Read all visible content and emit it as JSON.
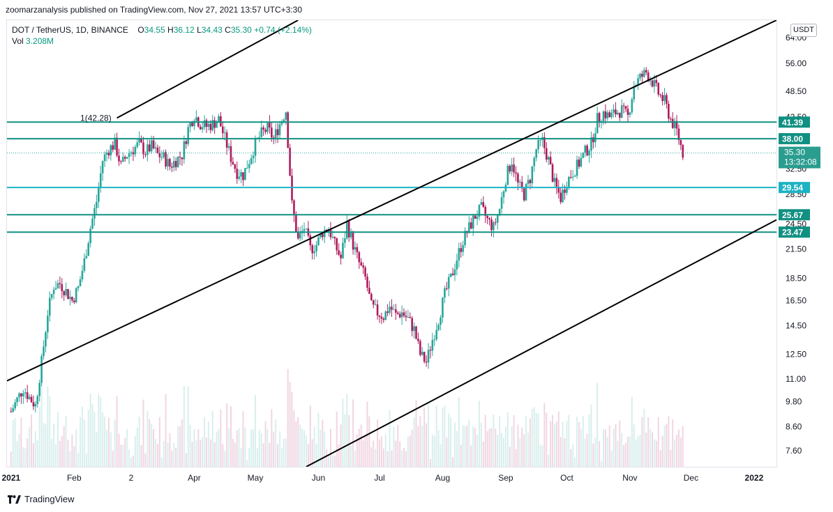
{
  "header": {
    "publisher_line": "zoomarzanalysis published on TradingView.com, Nov 27, 2021 13:57 UTC+3:30"
  },
  "legend": {
    "symbol": "DOT / TetherUS, 1D, BINANCE",
    "open_label": "O",
    "open": "34.55",
    "high_label": "H",
    "high": "36.12",
    "low_label": "L",
    "low": "34.43",
    "close_label": "C",
    "close": "35.30",
    "change": "+0.74 (+2.14%)",
    "vol_label": "Vol",
    "vol": "3.208M"
  },
  "currency_button": "USDT",
  "footer": {
    "brand": "TradingView",
    "logo_icon": "tradingview-logo-icon"
  },
  "annotation_label": "1(42.28)",
  "colors": {
    "up": "#26a69a",
    "down": "#b0195c",
    "level_line": "#119082",
    "level_line_cyan": "#1cb3c4",
    "trend_line": "#000000",
    "price_tag": "#2a9d8f"
  },
  "chart_data": {
    "type": "candlestick",
    "title": "DOT / TetherUS, 1D, BINANCE",
    "y_scale": "log",
    "y_ticks": [
      "7.60",
      "8.60",
      "9.80",
      "11.00",
      "12.50",
      "14.50",
      "16.50",
      "18.50",
      "21.50",
      "24.50",
      "28.50",
      "32.50",
      "42.50",
      "48.50",
      "56.00",
      "64.00"
    ],
    "x_ticks": [
      "2021",
      "Feb",
      "2",
      "Apr",
      "May",
      "Jun",
      "Jul",
      "Aug",
      "Sep",
      "Oct",
      "Nov",
      "Dec",
      "2022"
    ],
    "x_tick_dates": [
      "2021-01-01",
      "2021-02-01",
      "2021-03-01",
      "2021-04-01",
      "2021-05-01",
      "2021-06-01",
      "2021-07-01",
      "2021-08-01",
      "2021-09-01",
      "2021-10-01",
      "2021-11-01",
      "2021-12-01",
      "2022-01-01"
    ],
    "ylim": [
      7.0,
      70.0
    ],
    "xlim": [
      "2020-12-30",
      "2022-01-12"
    ],
    "date_start": "2021-01-01",
    "price_close_series": [
      [
        "2021-01-01",
        9.3
      ],
      [
        "2021-01-04",
        9.9
      ],
      [
        "2021-01-07",
        10.5
      ],
      [
        "2021-01-10",
        10.0
      ],
      [
        "2021-01-13",
        9.6
      ],
      [
        "2021-01-16",
        12.0
      ],
      [
        "2021-01-19",
        15.5
      ],
      [
        "2021-01-22",
        17.8
      ],
      [
        "2021-01-25",
        18.0
      ],
      [
        "2021-01-28",
        17.3
      ],
      [
        "2021-01-31",
        16.5
      ],
      [
        "2021-02-03",
        17.6
      ],
      [
        "2021-02-06",
        20.2
      ],
      [
        "2021-02-09",
        24.0
      ],
      [
        "2021-02-12",
        27.5
      ],
      [
        "2021-02-15",
        34.0
      ],
      [
        "2021-02-18",
        36.0
      ],
      [
        "2021-02-21",
        37.0
      ],
      [
        "2021-02-24",
        33.0
      ],
      [
        "2021-02-27",
        35.0
      ],
      [
        "2021-03-02",
        36.0
      ],
      [
        "2021-03-05",
        37.0
      ],
      [
        "2021-03-08",
        35.5
      ],
      [
        "2021-03-11",
        36.5
      ],
      [
        "2021-03-14",
        35.0
      ],
      [
        "2021-03-17",
        34.5
      ],
      [
        "2021-03-20",
        33.0
      ],
      [
        "2021-03-23",
        34.0
      ],
      [
        "2021-03-26",
        35.0
      ],
      [
        "2021-03-29",
        40.0
      ],
      [
        "2021-04-01",
        43.0
      ],
      [
        "2021-04-04",
        41.0
      ],
      [
        "2021-04-07",
        40.5
      ],
      [
        "2021-04-10",
        41.0
      ],
      [
        "2021-04-13",
        42.0
      ],
      [
        "2021-04-16",
        38.0
      ],
      [
        "2021-04-19",
        34.5
      ],
      [
        "2021-04-22",
        32.0
      ],
      [
        "2021-04-25",
        31.5
      ],
      [
        "2021-04-28",
        34.0
      ],
      [
        "2021-05-01",
        37.0
      ],
      [
        "2021-05-04",
        39.0
      ],
      [
        "2021-05-07",
        40.0
      ],
      [
        "2021-05-10",
        38.0
      ],
      [
        "2021-05-13",
        41.0
      ],
      [
        "2021-05-16",
        44.0
      ],
      [
        "2021-05-19",
        27.0
      ],
      [
        "2021-05-22",
        22.5
      ],
      [
        "2021-05-25",
        24.0
      ],
      [
        "2021-05-28",
        21.5
      ],
      [
        "2021-05-31",
        22.0
      ],
      [
        "2021-06-03",
        23.5
      ],
      [
        "2021-06-06",
        24.0
      ],
      [
        "2021-06-09",
        22.0
      ],
      [
        "2021-06-12",
        20.5
      ],
      [
        "2021-06-15",
        24.5
      ],
      [
        "2021-06-18",
        22.0
      ],
      [
        "2021-06-21",
        20.0
      ],
      [
        "2021-06-24",
        18.5
      ],
      [
        "2021-06-27",
        16.0
      ],
      [
        "2021-06-30",
        15.5
      ],
      [
        "2021-07-03",
        15.2
      ],
      [
        "2021-07-06",
        16.0
      ],
      [
        "2021-07-09",
        15.3
      ],
      [
        "2021-07-12",
        15.5
      ],
      [
        "2021-07-15",
        15.0
      ],
      [
        "2021-07-18",
        14.2
      ],
      [
        "2021-07-21",
        12.5
      ],
      [
        "2021-07-24",
        12.0
      ],
      [
        "2021-07-27",
        13.5
      ],
      [
        "2021-07-30",
        15.0
      ],
      [
        "2021-08-02",
        17.0
      ],
      [
        "2021-08-05",
        18.5
      ],
      [
        "2021-08-08",
        20.5
      ],
      [
        "2021-08-11",
        22.5
      ],
      [
        "2021-08-14",
        24.0
      ],
      [
        "2021-08-17",
        25.5
      ],
      [
        "2021-08-20",
        26.5
      ],
      [
        "2021-08-23",
        25.0
      ],
      [
        "2021-08-26",
        24.0
      ],
      [
        "2021-08-29",
        26.5
      ],
      [
        "2021-09-01",
        31.0
      ],
      [
        "2021-09-04",
        34.0
      ],
      [
        "2021-09-07",
        30.0
      ],
      [
        "2021-09-10",
        28.5
      ],
      [
        "2021-09-13",
        31.0
      ],
      [
        "2021-09-16",
        36.0
      ],
      [
        "2021-09-19",
        37.5
      ],
      [
        "2021-09-22",
        34.0
      ],
      [
        "2021-09-25",
        30.0
      ],
      [
        "2021-09-28",
        28.0
      ],
      [
        "2021-10-01",
        30.5
      ],
      [
        "2021-10-04",
        32.0
      ],
      [
        "2021-10-07",
        33.5
      ],
      [
        "2021-10-10",
        35.5
      ],
      [
        "2021-10-13",
        37.0
      ],
      [
        "2021-10-16",
        42.0
      ],
      [
        "2021-10-19",
        43.5
      ],
      [
        "2021-10-22",
        42.5
      ],
      [
        "2021-10-25",
        43.5
      ],
      [
        "2021-10-28",
        44.0
      ],
      [
        "2021-10-31",
        42.5
      ],
      [
        "2021-11-03",
        50.0
      ],
      [
        "2021-11-06",
        52.0
      ],
      [
        "2021-11-09",
        53.5
      ],
      [
        "2021-11-12",
        51.0
      ],
      [
        "2021-11-15",
        48.0
      ],
      [
        "2021-11-18",
        46.0
      ],
      [
        "2021-11-21",
        42.0
      ],
      [
        "2021-11-24",
        39.5
      ],
      [
        "2021-11-27",
        35.3
      ]
    ],
    "horizontal_levels": [
      {
        "label": "41.39",
        "value": 41.39,
        "style": "teal"
      },
      {
        "label": "38.00",
        "value": 38.0,
        "style": "teal"
      },
      {
        "label": "29.54",
        "value": 29.54,
        "style": "cyan"
      },
      {
        "label": "25.67",
        "value": 25.67,
        "style": "teal"
      },
      {
        "label": "23.47",
        "value": 23.47,
        "style": "teal"
      }
    ],
    "last_price": {
      "label": "35.30",
      "value": 35.3,
      "timer": "13:32:08"
    },
    "trend_lines": [
      {
        "name": "upper-parallel",
        "from": [
          "2021-02-22",
          42.28
        ],
        "to": [
          "2021-05-22",
          70.0
        ]
      },
      {
        "name": "middle-channel",
        "from": [
          "2020-12-30",
          10.9
        ],
        "to": [
          "2022-01-12",
          70.0
        ]
      },
      {
        "name": "lower-channel",
        "from": [
          "2021-05-26",
          7.0
        ],
        "to": [
          "2022-01-12",
          25.0
        ]
      }
    ],
    "annotation": {
      "text": "1(42.28)",
      "at": [
        "2021-02-20",
        42.28
      ]
    },
    "dotted_price_line": 35.3
  }
}
